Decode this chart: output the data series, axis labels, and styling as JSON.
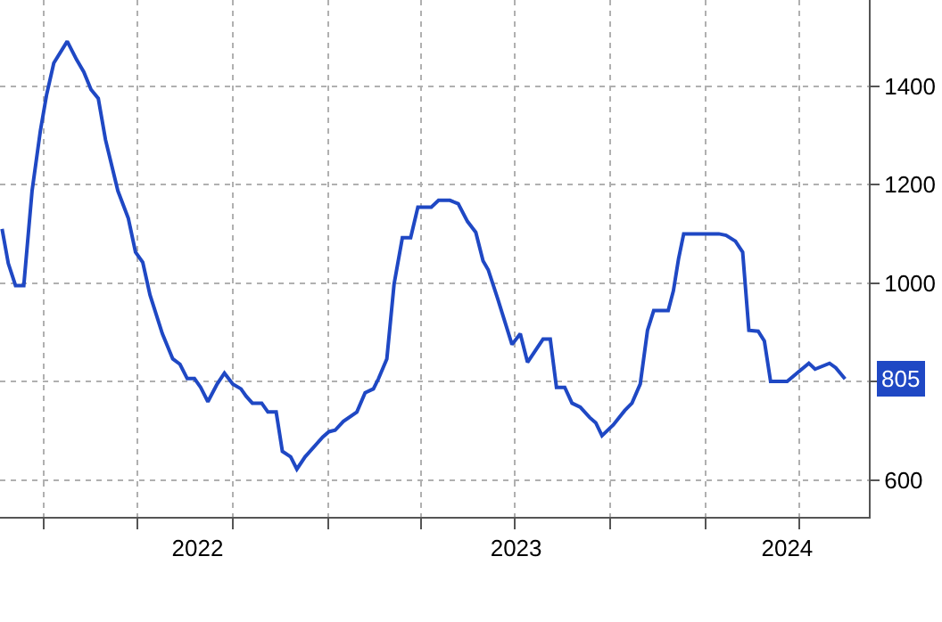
{
  "chart_data": {
    "type": "line",
    "x": [
      "2022-02-20",
      "2022-02-26",
      "2022-03-05",
      "2022-03-13",
      "2022-03-21",
      "2022-03-29",
      "2022-04-04",
      "2022-04-11",
      "2022-04-24",
      "2022-05-03",
      "2022-05-10",
      "2022-05-17",
      "2022-05-24",
      "2022-05-31",
      "2022-06-12",
      "2022-06-22",
      "2022-06-29",
      "2022-07-06",
      "2022-07-13",
      "2022-07-25",
      "2022-08-04",
      "2022-08-11",
      "2022-08-18",
      "2022-08-25",
      "2022-08-31",
      "2022-09-07",
      "2022-09-16",
      "2022-09-23",
      "2022-10-01",
      "2022-10-09",
      "2022-10-14",
      "2022-10-20",
      "2022-10-29",
      "2022-11-04",
      "2022-11-12",
      "2022-11-18",
      "2022-11-26",
      "2022-12-02",
      "2022-12-10",
      "2022-12-27",
      "2023-01-02",
      "2023-01-08",
      "2023-01-16",
      "2023-01-29",
      "2023-02-06",
      "2023-02-14",
      "2023-02-19",
      "2023-02-27",
      "2023-03-06",
      "2023-03-14",
      "2023-03-22",
      "2023-03-29",
      "2023-04-11",
      "2023-04-18",
      "2023-04-29",
      "2023-05-07",
      "2023-05-16",
      "2023-05-24",
      "2023-05-31",
      "2023-06-05",
      "2023-06-14",
      "2023-06-28",
      "2023-07-06",
      "2023-07-13",
      "2023-07-28",
      "2023-08-04",
      "2023-08-10",
      "2023-08-18",
      "2023-08-25",
      "2023-09-02",
      "2023-09-11",
      "2023-09-17",
      "2023-09-23",
      "2023-10-04",
      "2023-10-15",
      "2023-10-22",
      "2023-10-30",
      "2023-11-06",
      "2023-11-12",
      "2023-11-26",
      "2023-12-01",
      "2023-12-06",
      "2023-12-11",
      "2024-01-14",
      "2024-01-21",
      "2024-01-30",
      "2024-02-06",
      "2024-02-12",
      "2024-02-21",
      "2024-02-27",
      "2024-03-04",
      "2024-03-20",
      "2024-03-30",
      "2024-04-10",
      "2024-04-16",
      "2024-04-30",
      "2024-05-06",
      "2024-05-15"
    ],
    "series": [
      {
        "color": "#1f48c4",
        "values": [
          1110,
          1040,
          995,
          995,
          1187,
          1309,
          1382,
          1447,
          1491,
          1454,
          1429,
          1393,
          1375,
          1291,
          1187,
          1132,
          1063,
          1042,
          976,
          897,
          846,
          835,
          806,
          806,
          788,
          759,
          795,
          817,
          795,
          785,
          770,
          756,
          756,
          738,
          738,
          658,
          647,
          622,
          647,
          687,
          698,
          701,
          719,
          738,
          777,
          785,
          806,
          846,
          998,
          1092,
          1092,
          1154,
          1154,
          1168,
          1168,
          1161,
          1125,
          1103,
          1045,
          1027,
          969,
          875,
          897,
          839,
          886,
          886,
          788,
          788,
          756,
          748,
          727,
          716,
          690,
          712,
          741,
          756,
          795,
          904,
          944,
          944,
          984,
          1049,
          1100,
          1100,
          1097,
          1085,
          1063,
          904,
          902,
          882,
          800,
          800,
          818,
          837,
          825,
          837,
          828,
          805
        ]
      }
    ],
    "annotations": [
      {
        "text": "805",
        "x": "2024-05-15",
        "y": 805
      }
    ],
    "xlim": [
      "2022-02-18",
      "2024-06-07"
    ],
    "xticks": [
      {
        "value": "2022-04-01",
        "label": null
      },
      {
        "value": "2022-07-01",
        "label": null
      },
      {
        "value": "2022-10-01",
        "label": null
      },
      {
        "value": "2023-01-01",
        "label": null
      },
      {
        "value": "2023-04-01",
        "label": null
      },
      {
        "value": "2023-07-01",
        "label": null
      },
      {
        "value": "2023-10-01",
        "label": null
      },
      {
        "value": "2024-01-01",
        "label": null
      },
      {
        "value": "2024-04-01",
        "label": null
      },
      {
        "value": "2022-08-28",
        "label": "2022"
      },
      {
        "value": "2023-07-02",
        "label": "2023"
      },
      {
        "value": "2024-03-20",
        "label": "2024"
      }
    ],
    "ylim": [
      525,
      1575
    ],
    "yticks": [
      600,
      {
        "value": 800,
        "label": null
      },
      1000,
      1200,
      1400
    ],
    "grid": true,
    "marker": "none",
    "line_style": "solid"
  }
}
